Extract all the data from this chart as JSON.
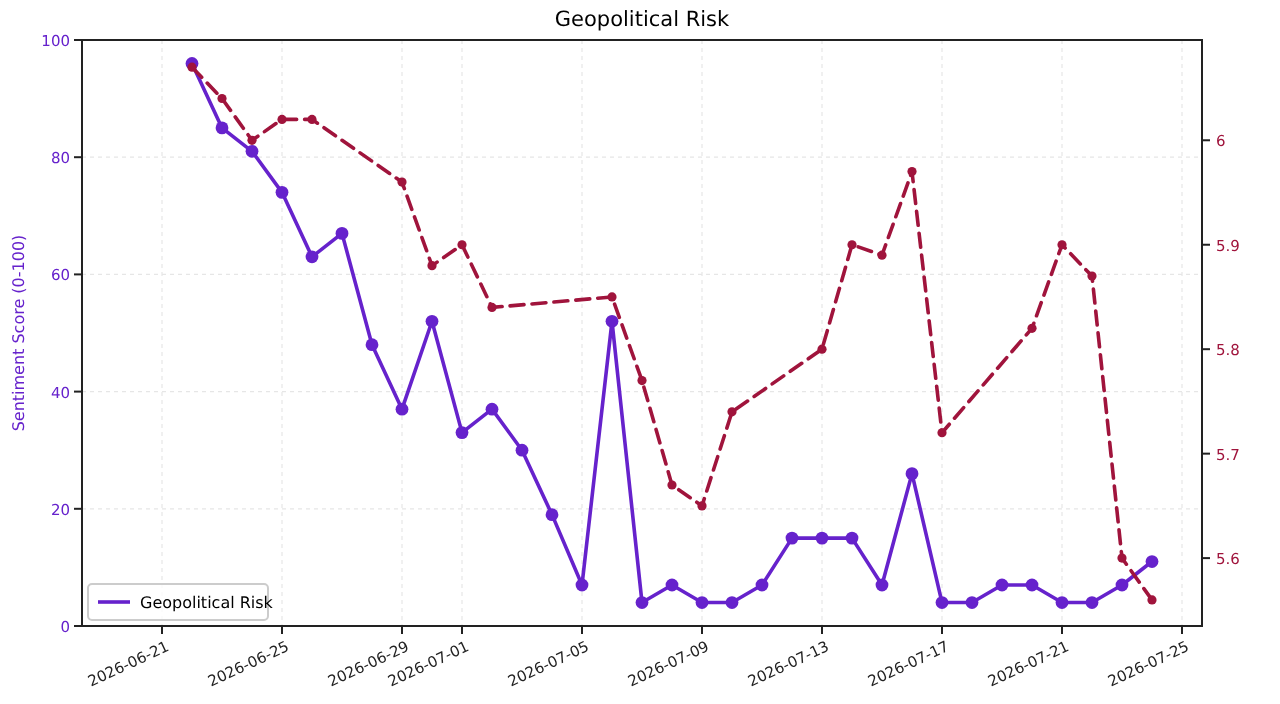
{
  "chart_data": {
    "type": "line",
    "title": "Geopolitical Risk",
    "ylabel": "Sentiment Score (0-100)",
    "xlim": [
      "2026-06-18T08:00",
      "2026-07-25T16:00"
    ],
    "xticks": [
      "2026-06-21",
      "2026-06-25",
      "2026-06-29",
      "2026-07-01",
      "2026-07-05",
      "2026-07-09",
      "2026-07-13",
      "2026-07-17",
      "2026-07-21",
      "2026-07-25"
    ],
    "ylim": [
      0,
      100
    ],
    "yticks": [
      0,
      20,
      40,
      60,
      80,
      100
    ],
    "y2lim": [
      5.535,
      6.096
    ],
    "y2ticks": [
      5.6,
      5.7,
      5.8,
      5.9,
      6.0
    ],
    "grid": true,
    "legend": "bottom left",
    "marker": "circle",
    "series": [
      {
        "name": "Geopolitical Risk",
        "color": "#6622cc",
        "line_style": "solid",
        "x": [
          "2026-06-22",
          "2026-06-23",
          "2026-06-24",
          "2026-06-25",
          "2026-06-26",
          "2026-06-27",
          "2026-06-28",
          "2026-06-29",
          "2026-06-30",
          "2026-07-01",
          "2026-07-02",
          "2026-07-03",
          "2026-07-04",
          "2026-07-05",
          "2026-07-06",
          "2026-07-07",
          "2026-07-08",
          "2026-07-09",
          "2026-07-10",
          "2026-07-11",
          "2026-07-12",
          "2026-07-13",
          "2026-07-14",
          "2026-07-15",
          "2026-07-16",
          "2026-07-17",
          "2026-07-18",
          "2026-07-19",
          "2026-07-20",
          "2026-07-21",
          "2026-07-22",
          "2026-07-23",
          "2026-07-24"
        ],
        "values": [
          96,
          85,
          81,
          74,
          63,
          67,
          48,
          37,
          52,
          33,
          37,
          30,
          19,
          7,
          52,
          4,
          7,
          4,
          4,
          7,
          15,
          15,
          15,
          7,
          26,
          4,
          4,
          7,
          7,
          4,
          4,
          7,
          11
        ]
      },
      {
        "color": "#a0143c",
        "axis": "y2",
        "line_style": "dashed",
        "x": [
          "2026-06-22",
          "2026-06-23",
          "2026-06-24",
          "2026-06-25",
          "2026-06-26",
          "2026-06-29",
          "2026-06-30",
          "2026-07-01",
          "2026-07-02",
          "2026-07-06",
          "2026-07-07",
          "2026-07-08",
          "2026-07-09",
          "2026-07-10",
          "2026-07-13",
          "2026-07-14",
          "2026-07-15",
          "2026-07-16",
          "2026-07-17",
          "2026-07-20",
          "2026-07-21",
          "2026-07-22",
          "2026-07-23",
          "2026-07-24"
        ],
        "values": [
          6.07,
          6.04,
          6.0,
          6.02,
          6.02,
          5.96,
          5.88,
          5.9,
          5.84,
          5.85,
          5.77,
          5.67,
          5.65,
          5.74,
          5.8,
          5.9,
          5.89,
          5.97,
          5.72,
          5.82,
          5.9,
          5.87,
          5.6,
          5.56
        ]
      }
    ]
  }
}
